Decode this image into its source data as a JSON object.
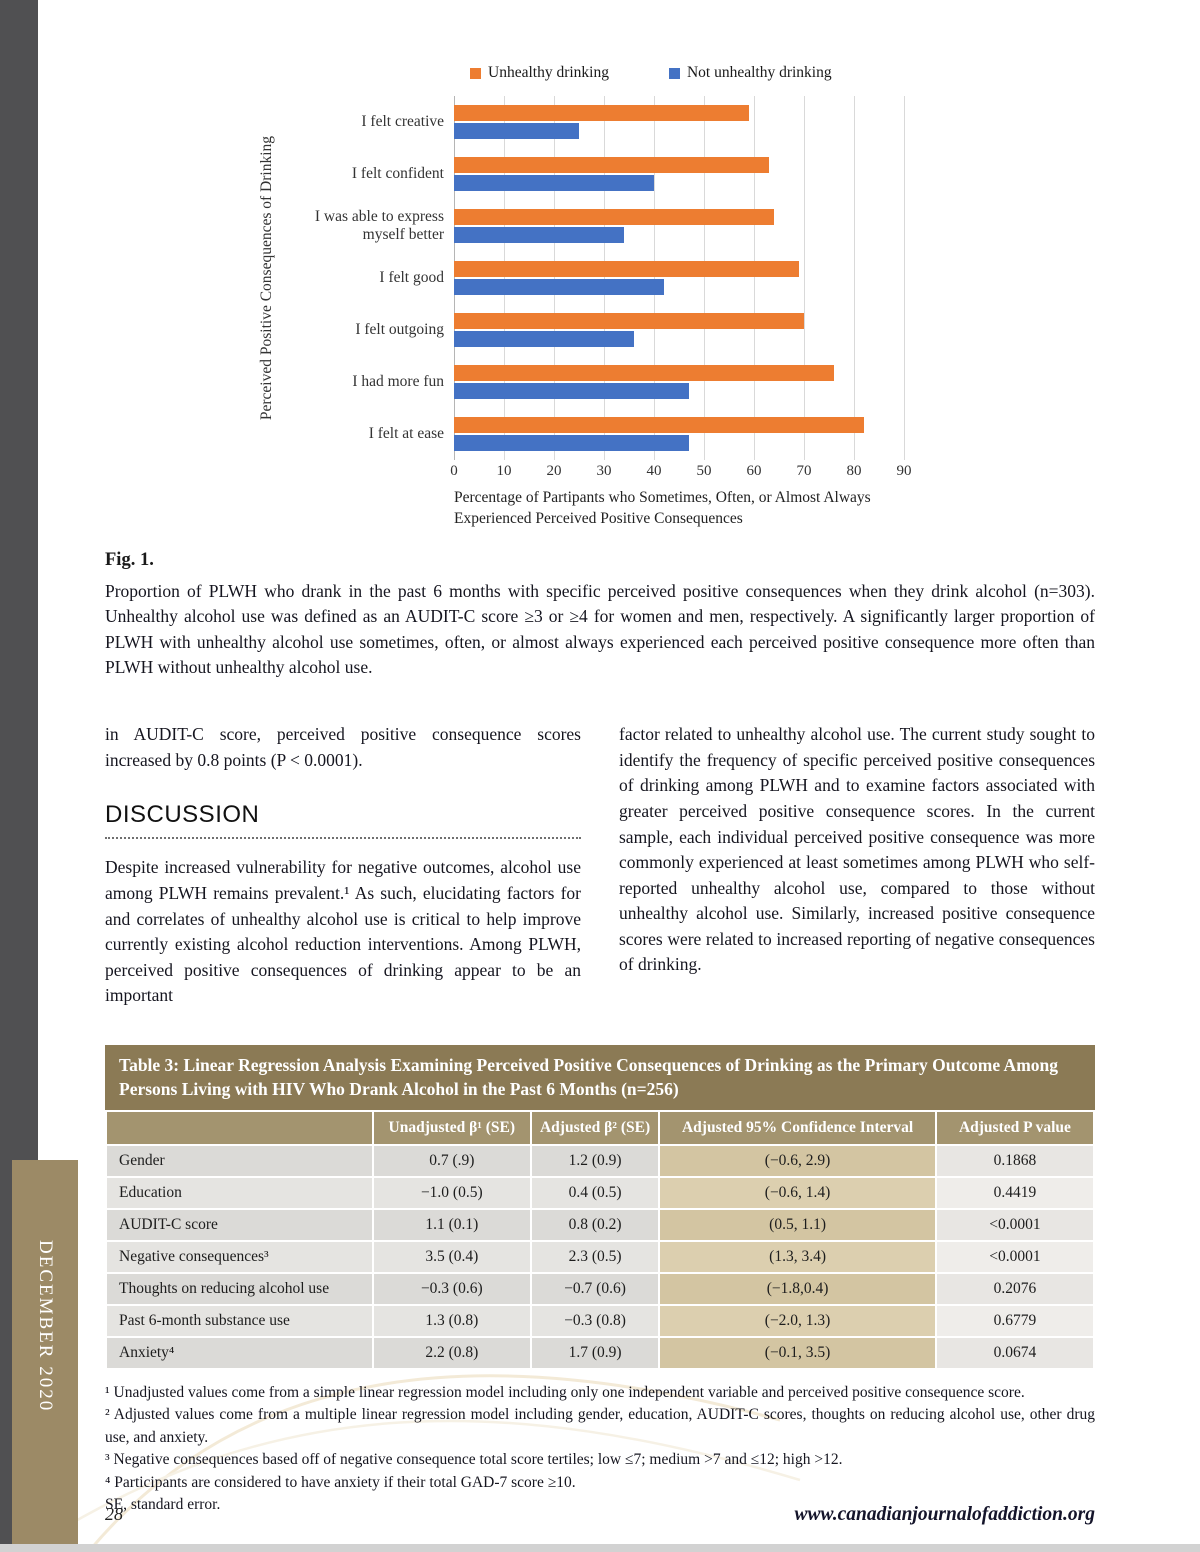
{
  "page": {
    "number": "28",
    "footer_url": "www.canadianjournalofaddiction.org",
    "sidebar_label": "DECEMBER 2020"
  },
  "chart_data": {
    "type": "bar",
    "orientation": "horizontal",
    "categories": [
      "I felt creative",
      "I felt confident",
      "I was able to express myself better",
      "I felt good",
      "I felt outgoing",
      "I had more fun",
      "I felt at ease"
    ],
    "series": [
      {
        "name": "Unhealthy drinking",
        "color": "#ED7D31",
        "values": [
          59,
          63,
          64,
          69,
          70,
          76,
          82
        ]
      },
      {
        "name": "Not unhealthy drinking",
        "color": "#4472C4",
        "values": [
          25,
          40,
          34,
          42,
          36,
          47,
          47
        ]
      }
    ],
    "xlim": [
      0,
      90
    ],
    "xticks": [
      0,
      10,
      20,
      30,
      40,
      50,
      60,
      70,
      80,
      90
    ],
    "xlabel": "Percentage of Partipants who Sometimes, Often, or Almost Always Experienced Perceived Positive Consequences",
    "ylabel": "Perceived Positive Consequences of Drinking",
    "legend_position": "top",
    "grid": true
  },
  "figure": {
    "label": "Fig. 1.",
    "caption": "Proportion of PLWH who drank in the past 6 months with specific perceived positive consequences when they drink alcohol (n=303). Unhealthy alcohol use was defined as an AUDIT-C score ≥3 or ≥4 for women and men, respectively. A significantly larger proportion of PLWH with unhealthy alcohol use sometimes, often, or almost always experienced each perceived positive consequence more often than PLWH without unhealthy alcohol use."
  },
  "body": {
    "left_paragraph": "in AUDIT-C score, perceived positive consequence scores increased by 0.8 points (P < 0.0001).",
    "discussion_heading": "DISCUSSION",
    "discussion_paragraph": "Despite increased vulnerability for negative outcomes, alcohol use among PLWH remains prevalent.¹ As such, elucidating factors for and correlates of unhealthy alcohol use is critical to help improve currently existing alcohol reduction interventions. Among PLWH, perceived positive consequences of drinking appear to be an important",
    "right_paragraph": "factor related to unhealthy alcohol use. The current study sought to identify the frequency of specific perceived positive consequences of drinking among PLWH and to examine factors associated with greater perceived positive consequence scores. In the current sample, each individual perceived positive consequence was more commonly experienced at least sometimes among PLWH who self-reported unhealthy alcohol use, compared to those without unhealthy alcohol use. Similarly, increased positive consequence scores were related to increased reporting of negative consequences of drinking."
  },
  "table": {
    "title": "Table 3: Linear Regression Analysis Examining Perceived Positive Consequences of Drinking as the Primary Outcome Among Persons Living with HIV Who Drank Alcohol in the Past 6 Months (n=256)",
    "headers": [
      "",
      "Unadjusted β¹ (SE)",
      "Adjusted β² (SE)",
      "Adjusted 95% Confidence Interval",
      "Adjusted P value"
    ],
    "rows": [
      [
        "Gender",
        "0.7 (.9)",
        "1.2 (0.9)",
        "(−0.6, 2.9)",
        "0.1868"
      ],
      [
        "Education",
        "−1.0 (0.5)",
        "0.4 (0.5)",
        "(−0.6, 1.4)",
        "0.4419"
      ],
      [
        "AUDIT-C score",
        "1.1 (0.1)",
        "0.8 (0.2)",
        "(0.5, 1.1)",
        "<0.0001"
      ],
      [
        "Negative consequences³",
        "3.5 (0.4)",
        "2.3 (0.5)",
        "(1.3, 3.4)",
        "<0.0001"
      ],
      [
        "Thoughts on reducing alcohol use",
        "−0.3 (0.6)",
        "−0.7 (0.6)",
        "(−1.8,0.4)",
        "0.2076"
      ],
      [
        "Past 6-month substance use",
        "1.3 (0.8)",
        "−0.3 (0.8)",
        "(−2.0, 1.3)",
        "0.6779"
      ],
      [
        "Anxiety⁴",
        "2.2 (0.8)",
        "1.7 (0.9)",
        "(−0.1, 3.5)",
        "0.0674"
      ]
    ],
    "footnotes": [
      "¹ Unadjusted values come from a simple linear regression model including only one independent variable and perceived positive consequence score.",
      "² Adjusted values come from a multiple linear regression model including gender, education, AUDIT-C scores, thoughts on reducing alcohol use, other drug use, and anxiety.",
      "³ Negative consequences based off of negative consequence total score tertiles; low ≤7; medium >7 and ≤12; high >12.",
      "⁴ Participants are considered to have anxiety if their total GAD-7 score ≥10.",
      "SE, standard error."
    ]
  }
}
